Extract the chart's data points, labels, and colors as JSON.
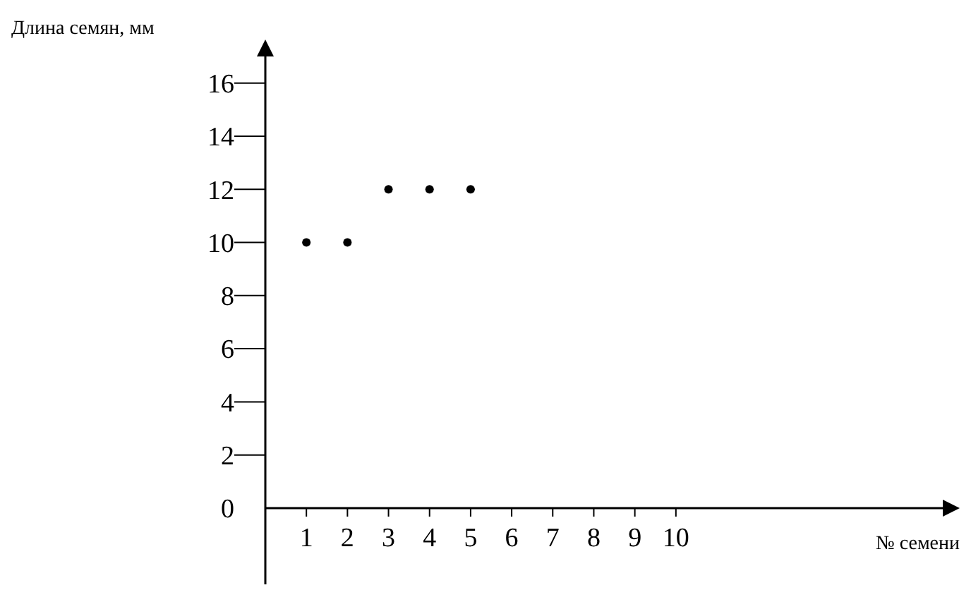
{
  "chart_data": {
    "type": "scatter",
    "ylabel": "Длина семян, мм",
    "xlabel": "№ семени",
    "x": [
      1,
      2,
      3,
      4,
      5
    ],
    "values": [
      10,
      10,
      12,
      12,
      12
    ],
    "color": "#000000",
    "marker": "circle",
    "xlim": [
      0,
      16.5
    ],
    "xticks": [
      1,
      2,
      3,
      4,
      5,
      6,
      7,
      8,
      9,
      10
    ],
    "ylim": [
      0,
      17
    ],
    "yticks": [
      0,
      2,
      4,
      6,
      8,
      10,
      12,
      14,
      16
    ],
    "grid": false
  }
}
